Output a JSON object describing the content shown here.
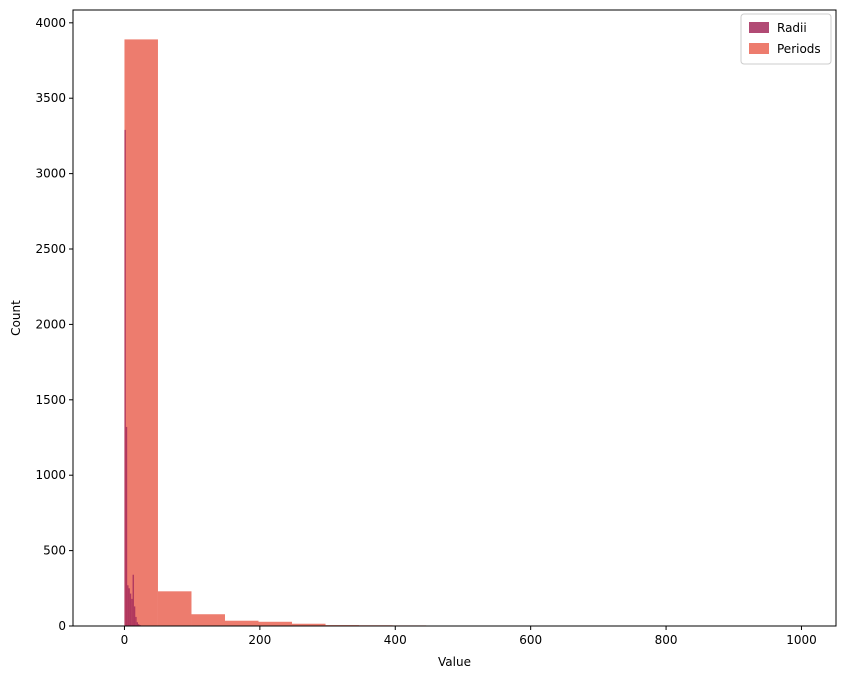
{
  "chart_data": {
    "type": "bar",
    "title": "",
    "xlabel": "Value",
    "ylabel": "Count",
    "xlim": [
      -76,
      1051
    ],
    "ylim": [
      0,
      4085
    ],
    "xticks": [
      0,
      200,
      400,
      600,
      800,
      1000
    ],
    "yticks": [
      0,
      500,
      1000,
      1500,
      2000,
      2500,
      3000,
      3500,
      4000
    ],
    "legend": {
      "position": "top-right"
    },
    "grid": false,
    "series": [
      {
        "name": "Radii",
        "color": "#a32a5c",
        "opacity": 0.85,
        "bins": [
          {
            "x0": 0,
            "x1": 2,
            "count": 3290
          },
          {
            "x0": 2,
            "x1": 4,
            "count": 1320
          },
          {
            "x0": 4,
            "x1": 6,
            "count": 270
          },
          {
            "x0": 6,
            "x1": 8,
            "count": 250
          },
          {
            "x0": 8,
            "x1": 10,
            "count": 215
          },
          {
            "x0": 10,
            "x1": 12,
            "count": 180
          },
          {
            "x0": 12,
            "x1": 14,
            "count": 340
          },
          {
            "x0": 14,
            "x1": 16,
            "count": 130
          },
          {
            "x0": 16,
            "x1": 18,
            "count": 60
          },
          {
            "x0": 18,
            "x1": 20,
            "count": 25
          },
          {
            "x0": 20,
            "x1": 22,
            "count": 12
          },
          {
            "x0": 22,
            "x1": 24,
            "count": 6
          }
        ]
      },
      {
        "name": "Periods",
        "color": "#ea6a5a",
        "opacity": 0.88,
        "bins": [
          {
            "x0": 0,
            "x1": 49.5,
            "count": 3890
          },
          {
            "x0": 49.5,
            "x1": 99,
            "count": 230
          },
          {
            "x0": 99,
            "x1": 148.5,
            "count": 78
          },
          {
            "x0": 148.5,
            "x1": 198,
            "count": 35
          },
          {
            "x0": 198,
            "x1": 247.5,
            "count": 28
          },
          {
            "x0": 247.5,
            "x1": 297,
            "count": 15
          },
          {
            "x0": 297,
            "x1": 346.5,
            "count": 6
          },
          {
            "x0": 346.5,
            "x1": 396,
            "count": 5
          },
          {
            "x0": 396,
            "x1": 445.5,
            "count": 4
          },
          {
            "x0": 445.5,
            "x1": 495,
            "count": 3
          },
          {
            "x0": 495,
            "x1": 544.5,
            "count": 0
          },
          {
            "x0": 544.5,
            "x1": 594,
            "count": 2
          },
          {
            "x0": 594,
            "x1": 643.5,
            "count": 0
          },
          {
            "x0": 643.5,
            "x1": 693,
            "count": 0
          },
          {
            "x0": 693,
            "x1": 742.5,
            "count": 2
          },
          {
            "x0": 742.5,
            "x1": 792,
            "count": 0
          },
          {
            "x0": 792,
            "x1": 841.5,
            "count": 0
          },
          {
            "x0": 841.5,
            "x1": 891,
            "count": 0
          },
          {
            "x0": 891,
            "x1": 940.5,
            "count": 0
          },
          {
            "x0": 940.5,
            "x1": 990,
            "count": 1
          }
        ]
      }
    ]
  }
}
